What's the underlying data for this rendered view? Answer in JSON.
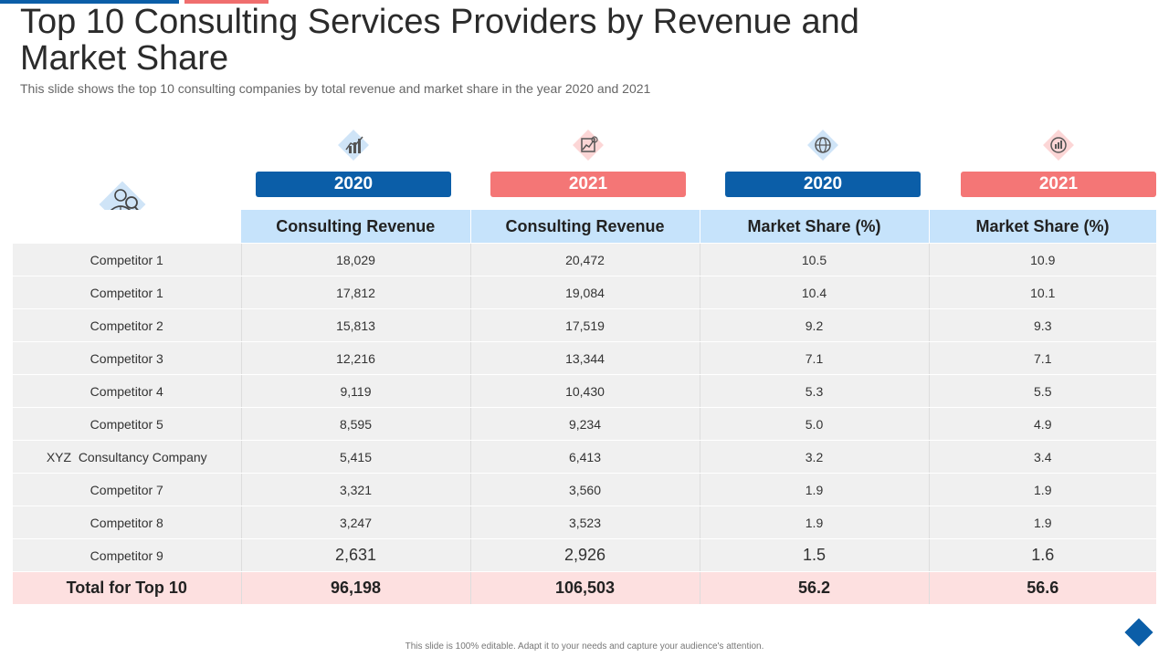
{
  "slide": {
    "title": "Top 10 Consulting Services Providers by Revenue and Market Share",
    "subtitle": "This slide shows the top 10 consulting companies by total revenue and market share in the year 2020 and 2021",
    "footer": "This slide is 100% editable. Adapt it to your needs and capture your audience's attention."
  },
  "columns": [
    {
      "year": "2020",
      "header": "Consulting Revenue",
      "icon": "growth-chart-icon",
      "color": "#0b5ea8"
    },
    {
      "year": "2021",
      "header": "Consulting Revenue",
      "icon": "money-chart-icon",
      "color": "#f47676"
    },
    {
      "year": "2020",
      "header": "Market Share (%)",
      "icon": "globe-chart-icon",
      "color": "#0b5ea8"
    },
    {
      "year": "2021",
      "header": "Market Share (%)",
      "icon": "target-chart-icon",
      "color": "#f47676"
    }
  ],
  "rows": [
    {
      "name": "Competitor 1",
      "values": [
        "18,029",
        "20,472",
        "10.5",
        "10.9"
      ]
    },
    {
      "name": "Competitor 1",
      "values": [
        "17,812",
        "19,084",
        "10.4",
        "10.1"
      ]
    },
    {
      "name": "Competitor 2",
      "values": [
        "15,813",
        "17,519",
        "9.2",
        "9.3"
      ]
    },
    {
      "name": "Competitor 3",
      "values": [
        "12,216",
        "13,344",
        "7.1",
        "7.1"
      ]
    },
    {
      "name": "Competitor 4",
      "values": [
        "9,119",
        "10,430",
        "5.3",
        "5.5"
      ]
    },
    {
      "name": "Competitor 5",
      "values": [
        "8,595",
        "9,234",
        "5.0",
        "4.9"
      ]
    },
    {
      "name": "XYZ  Consultancy Company",
      "values": [
        "5,415",
        "6,413",
        "3.2",
        "3.4"
      ]
    },
    {
      "name": "Competitor 7",
      "values": [
        "3,321",
        "3,560",
        "1.9",
        "1.9"
      ]
    },
    {
      "name": "Competitor 8",
      "values": [
        "3,247",
        "3,523",
        "1.9",
        "1.9"
      ]
    },
    {
      "name": "Competitor 9",
      "values": [
        "2,631",
        "2,926",
        "1.5",
        "1.6"
      ]
    }
  ],
  "total": {
    "name": "Total for Top 10",
    "values": [
      "96,198",
      "106,503",
      "56.2",
      "56.6"
    ]
  },
  "colors": {
    "blue": "#0b5ea8",
    "red": "#f47676",
    "header_bg": "#c6e3fb",
    "total_bg": "#fde0e0"
  }
}
